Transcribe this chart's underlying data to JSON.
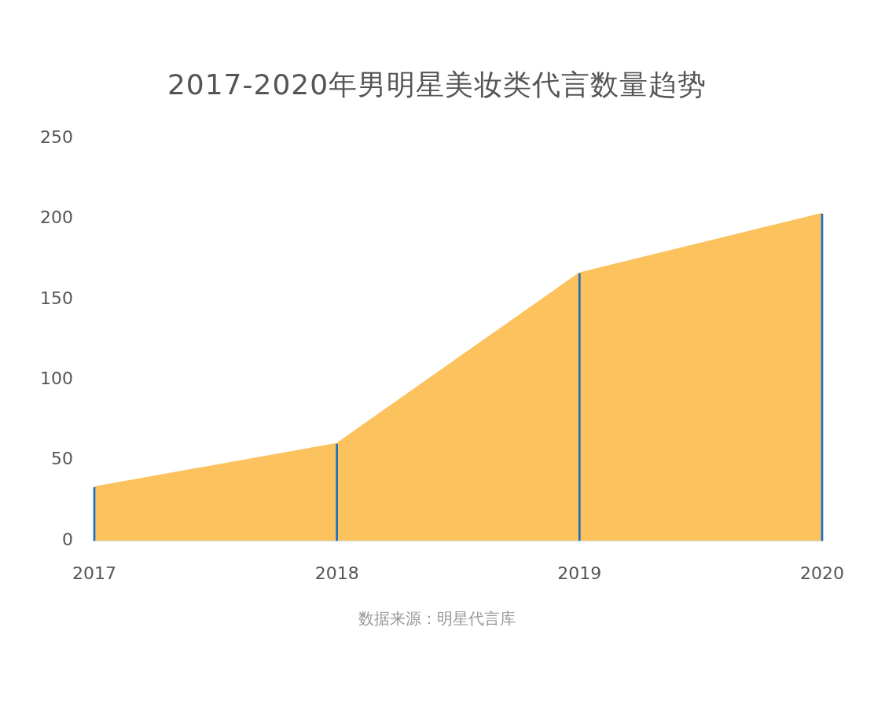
{
  "chart_data": {
    "type": "area",
    "title": "2017-2020年男明星美妆类代言数量趋势",
    "categories": [
      "2017",
      "2018",
      "2019",
      "2020"
    ],
    "series": [
      {
        "color": "#fcc25e",
        "values": [
          33,
          60,
          166,
          203
        ]
      },
      {
        "type": "bar",
        "color": "#1a6fc4",
        "values": [
          33,
          60,
          166,
          203
        ]
      }
    ],
    "ylim": [
      0,
      250
    ],
    "yticks": [
      0,
      50,
      100,
      150,
      200,
      250
    ],
    "grid": false,
    "legend": false,
    "marker": "none",
    "annotations": [
      "数据来源：明星代言库"
    ]
  }
}
